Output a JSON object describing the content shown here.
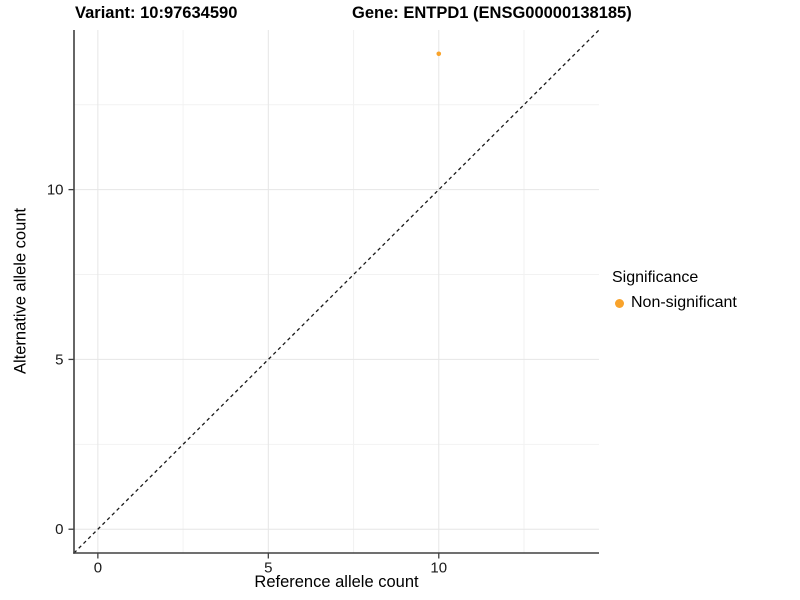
{
  "chart_data": {
    "type": "scatter",
    "titles": {
      "left": "Variant: 10:97634590",
      "right": "Gene: ENTPD1 (ENSG00000138185)"
    },
    "xlabel": "Reference allele count",
    "ylabel": "Alternative allele count",
    "xlim": [
      -0.7,
      14.7
    ],
    "ylim": [
      -0.7,
      14.7
    ],
    "x_ticks": [
      0,
      5,
      10
    ],
    "y_ticks": [
      0,
      5,
      10
    ],
    "grid": {
      "major": [
        0,
        5,
        10
      ],
      "minor": [
        2.5,
        7.5,
        12.5
      ],
      "major_color": "#e6e6e6",
      "minor_color": "#f2f2f2"
    },
    "axis_color": "#404040",
    "tick_label_color": "#1a1a1a",
    "points": [
      {
        "x": 10,
        "y": 14,
        "series": "Non-significant",
        "color": "#F9A32B",
        "radius": 2.3
      }
    ],
    "identity_line": {
      "x1": -0.7,
      "y1": -0.7,
      "x2": 14.7,
      "y2": 14.7,
      "style": "dashed",
      "dash": "3.5 3.2",
      "color": "#1a1a1a"
    },
    "legend": {
      "position": "right",
      "title": "Significance",
      "items": [
        {
          "label": "Non-significant",
          "color": "#F9A32B",
          "marker": "circle"
        }
      ]
    }
  }
}
